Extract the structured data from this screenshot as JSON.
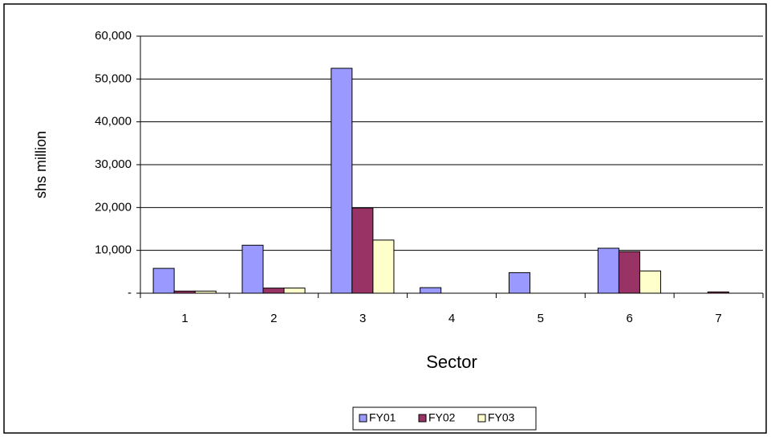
{
  "chart_data": {
    "type": "bar",
    "x_label": "Sector",
    "y_label": "shs million",
    "categories": [
      "1",
      "2",
      "3",
      "4",
      "5",
      "6",
      "7"
    ],
    "series": [
      {
        "name": "FY01",
        "color": "#9999ff",
        "values": [
          5800,
          11200,
          52500,
          1300,
          4800,
          10500,
          0
        ]
      },
      {
        "name": "FY02",
        "color": "#993366",
        "values": [
          500,
          1200,
          19900,
          0,
          0,
          9700,
          300
        ]
      },
      {
        "name": "FY03",
        "color": "#ffffcc",
        "values": [
          500,
          1200,
          12400,
          0,
          0,
          5200,
          0
        ]
      }
    ],
    "ylim": [
      0,
      60000
    ],
    "yticks": [
      {
        "value": 0,
        "label": "-"
      },
      {
        "value": 10000,
        "label": "10,000"
      },
      {
        "value": 20000,
        "label": "20,000"
      },
      {
        "value": 30000,
        "label": "30,000"
      },
      {
        "value": 40000,
        "label": "40,000"
      },
      {
        "value": 50000,
        "label": "50,000"
      },
      {
        "value": 60000,
        "label": "60,000"
      }
    ],
    "grid": true,
    "legend": "bottom"
  }
}
